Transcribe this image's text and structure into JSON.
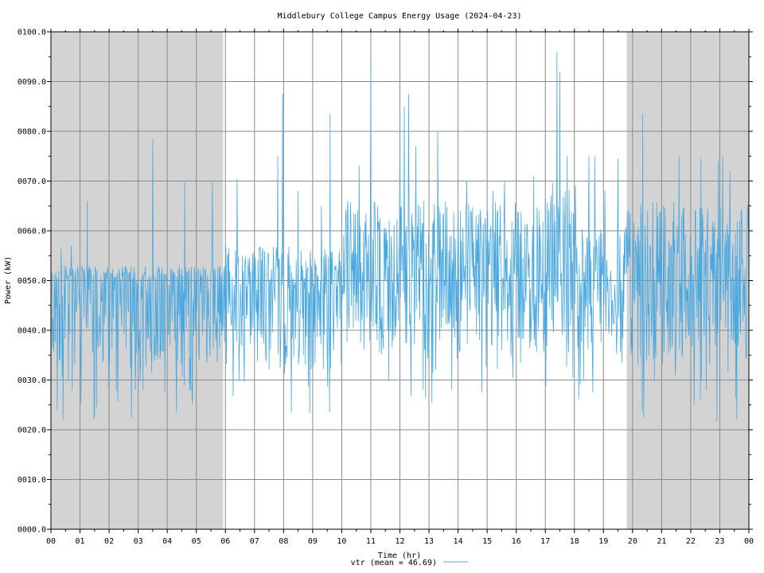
{
  "chart_data": {
    "type": "line",
    "title": "Middlebury College Campus Energy Usage (2024-04-23)",
    "xlabel": "Time (hr)",
    "ylabel": "Power (kW)",
    "xlim": [
      0,
      24
    ],
    "ylim": [
      0,
      100
    ],
    "x_ticks": [
      "00",
      "01",
      "02",
      "03",
      "04",
      "05",
      "06",
      "07",
      "08",
      "09",
      "10",
      "11",
      "12",
      "13",
      "14",
      "15",
      "16",
      "17",
      "18",
      "19",
      "20",
      "21",
      "22",
      "23",
      "00"
    ],
    "y_ticks": [
      "0000.0",
      "0010.0",
      "0020.0",
      "0030.0",
      "0040.0",
      "0050.0",
      "0060.0",
      "0070.0",
      "0080.0",
      "0090.0",
      "0100.0"
    ],
    "y_tick_values": [
      0,
      10,
      20,
      30,
      40,
      50,
      60,
      70,
      80,
      90,
      100
    ],
    "grid": true,
    "night_shading": [
      [
        0,
        5.92
      ],
      [
        19.8,
        24
      ]
    ],
    "legend": {
      "label": "vtr (mean = 46.69)",
      "placement": "bottom-center"
    },
    "series": [
      {
        "name": "vtr",
        "color": "#4aa8e0",
        "segments": [
          {
            "x_start": 0,
            "x_end": 6,
            "low": 21.5,
            "mid": 50,
            "high": 53,
            "spikes": [
              [
                1.25,
                66
              ],
              [
                3.5,
                78.5
              ],
              [
                4.6,
                70
              ],
              [
                5.55,
                70
              ],
              [
                0.35,
                56.5
              ],
              [
                0.7,
                57
              ]
            ]
          },
          {
            "x_start": 6,
            "x_end": 10,
            "low": 21.5,
            "mid": 48,
            "high": 57,
            "spikes": [
              [
                6.4,
                70.5
              ],
              [
                7.8,
                75
              ],
              [
                7.97,
                87.5
              ],
              [
                9.6,
                83.5
              ],
              [
                8.5,
                68
              ],
              [
                9.3,
                65
              ]
            ]
          },
          {
            "x_start": 10,
            "x_end": 14,
            "low": 25.5,
            "mid": 50,
            "high": 66,
            "spikes": [
              [
                11.0,
                92.5
              ],
              [
                12.0,
                83
              ],
              [
                12.15,
                85
              ],
              [
                12.3,
                87.5
              ],
              [
                12.55,
                77
              ],
              [
                13.3,
                80
              ],
              [
                10.6,
                73
              ]
            ]
          },
          {
            "x_start": 14,
            "x_end": 17.2,
            "low": 27,
            "mid": 48,
            "high": 66,
            "spikes": [
              [
                14.3,
                70
              ],
              [
                15.6,
                70
              ],
              [
                16.6,
                71
              ],
              [
                15.2,
                68
              ]
            ]
          },
          {
            "x_start": 17.2,
            "x_end": 18.2,
            "low": 25.5,
            "mid": 50,
            "high": 70,
            "spikes": [
              [
                17.4,
                96
              ],
              [
                17.5,
                92
              ],
              [
                17.1,
                80
              ],
              [
                17.75,
                75
              ]
            ]
          },
          {
            "x_start": 18.2,
            "x_end": 19.8,
            "low": 27,
            "mid": 47,
            "high": 62,
            "spikes": [
              [
                18.5,
                75
              ],
              [
                18.7,
                75
              ],
              [
                19.5,
                74.5
              ],
              [
                19.05,
                68
              ]
            ]
          },
          {
            "x_start": 19.8,
            "x_end": 24,
            "low": 21.5,
            "mid": 50,
            "high": 66,
            "spikes": [
              [
                20.35,
                83.5
              ],
              [
                21.6,
                75
              ],
              [
                22.35,
                74.5
              ],
              [
                23.1,
                75
              ],
              [
                23.35,
                72
              ],
              [
                22.95,
                74
              ],
              [
                23.6,
                62
              ]
            ]
          }
        ]
      }
    ]
  }
}
